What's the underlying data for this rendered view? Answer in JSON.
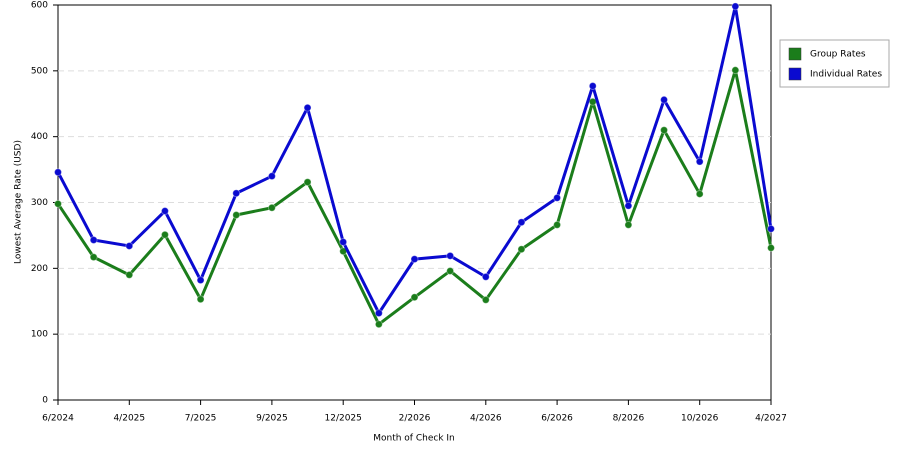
{
  "chart_data": {
    "type": "line",
    "categories": [
      "6/2024",
      null,
      "4/2025",
      null,
      "7/2025",
      null,
      "9/2025",
      null,
      "12/2025",
      null,
      "2/2026",
      null,
      "4/2026",
      null,
      "6/2026",
      null,
      "8/2026",
      null,
      "10/2026",
      null,
      "4/2027"
    ],
    "series": [
      {
        "name": "Group Rates",
        "color": "#1b7d1b",
        "values": [
          298,
          217,
          190,
          251,
          153,
          281,
          292,
          331,
          226,
          115,
          156,
          196,
          152,
          229,
          266,
          453,
          266,
          410,
          313,
          501,
          231
        ]
      },
      {
        "name": "Individual Rates",
        "color": "#0a0ad0",
        "values": [
          346,
          243,
          234,
          287,
          182,
          314,
          340,
          444,
          240,
          132,
          214,
          219,
          187,
          270,
          307,
          477,
          295,
          456,
          362,
          598,
          260
        ]
      }
    ],
    "x_label": "Month of Check In",
    "y_label": "Lowest Average Rate (USD)",
    "ylim": [
      0,
      600
    ],
    "yticks": [
      0,
      100,
      200,
      300,
      400,
      500,
      600
    ],
    "grid": true,
    "legend": "right"
  }
}
